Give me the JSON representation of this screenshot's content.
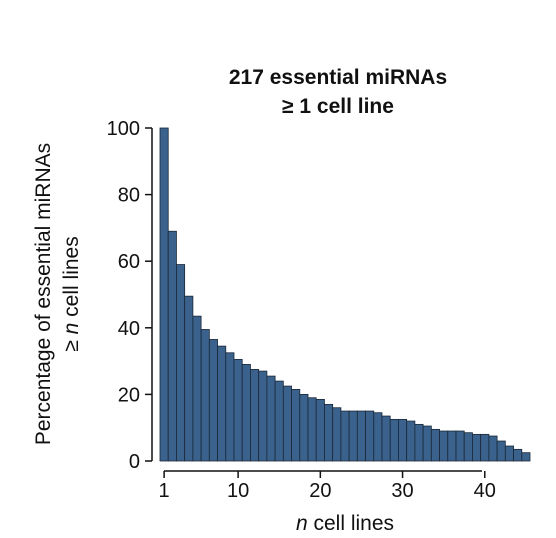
{
  "chart_data": {
    "type": "bar",
    "title": [
      "217 essential miRNAs",
      "≥ 1 cell line"
    ],
    "xlabel": {
      "italic": "n",
      "rest": " cell lines"
    },
    "ylabel": [
      "Percentage of essential miRNAs",
      {
        "prefix": "≥ ",
        "italic": "n",
        "rest": " cell lines"
      }
    ],
    "x": [
      1,
      2,
      3,
      4,
      5,
      6,
      7,
      8,
      9,
      10,
      11,
      12,
      13,
      14,
      15,
      16,
      17,
      18,
      19,
      20,
      21,
      22,
      23,
      24,
      25,
      26,
      27,
      28,
      29,
      30,
      31,
      32,
      33,
      34,
      35,
      36,
      37,
      38,
      39,
      40,
      41,
      42,
      43,
      44,
      45
    ],
    "values": [
      100,
      69,
      59,
      49.5,
      43.5,
      39.5,
      36.5,
      34.5,
      32.5,
      30.5,
      29,
      27.5,
      27,
      25.5,
      24,
      22.5,
      21.5,
      20,
      19,
      18.5,
      17,
      16,
      15,
      15,
      15,
      15,
      14.5,
      13.5,
      12.5,
      12.5,
      12,
      11,
      10.5,
      9.5,
      9,
      9,
      9,
      8.5,
      8,
      8,
      7.5,
      6,
      4.5,
      3.5,
      2.5
    ],
    "xlim": [
      0.5,
      45.5
    ],
    "ylim": [
      0,
      100
    ],
    "xticks": [
      1,
      10,
      20,
      30,
      40
    ],
    "yticks": [
      0,
      20,
      40,
      60,
      80,
      100
    ],
    "bar_color": "#3a628c",
    "bar_edge_color": "#1a2838",
    "grid": false,
    "legend": "none"
  }
}
